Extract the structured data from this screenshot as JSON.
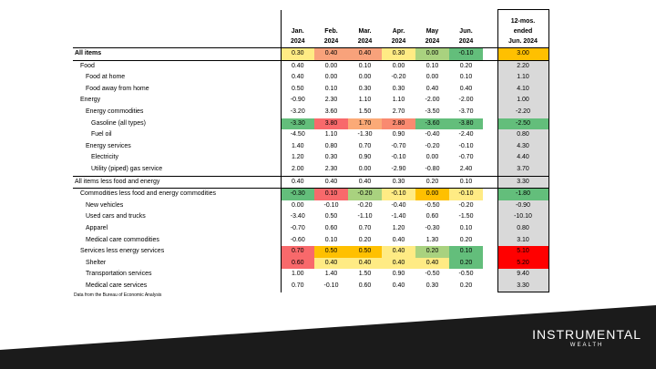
{
  "header": {
    "columns": [
      {
        "line1": "Jan.",
        "line2": "2024"
      },
      {
        "line1": "Feb.",
        "line2": "2024"
      },
      {
        "line1": "Mar.",
        "line2": "2024"
      },
      {
        "line1": "Apr.",
        "line2": "2024"
      },
      {
        "line1": "May",
        "line2": "2024"
      },
      {
        "line1": "Jun.",
        "line2": "2024"
      }
    ],
    "year_col": {
      "line1": "12-mos.",
      "line2": "ended",
      "line3": "Jun. 2024"
    }
  },
  "rows": [
    {
      "label": "All items",
      "indent": 0,
      "bold": true,
      "values": [
        "0.30",
        "0.40",
        "0.40",
        "0.30",
        "0.00",
        "-0.10"
      ],
      "colors": [
        "#ffeb84",
        "#f8a27b",
        "#f8a27b",
        "#ffeb84",
        "#a9d27f",
        "#63be7b"
      ],
      "year": "3.00",
      "year_color": "#ffc000"
    },
    {
      "label": "Food",
      "indent": 1,
      "values": [
        "0.40",
        "0.00",
        "0.10",
        "0.00",
        "0.10",
        "0.20"
      ],
      "year": "2.20"
    },
    {
      "label": "Food at home",
      "indent": 2,
      "values": [
        "0.40",
        "0.00",
        "0.00",
        "-0.20",
        "0.00",
        "0.10"
      ],
      "year": "1.10"
    },
    {
      "label": "Food away from home",
      "indent": 2,
      "values": [
        "0.50",
        "0.10",
        "0.30",
        "0.30",
        "0.40",
        "0.40"
      ],
      "year": "4.10"
    },
    {
      "label": "Energy",
      "indent": 1,
      "values": [
        "-0.90",
        "2.30",
        "1.10",
        "1.10",
        "-2.00",
        "-2.00"
      ],
      "year": "1.00"
    },
    {
      "label": "Energy commodities",
      "indent": 2,
      "values": [
        "-3.20",
        "3.60",
        "1.50",
        "2.70",
        "-3.50",
        "-3.70"
      ],
      "year": "-2.20"
    },
    {
      "label": "Gasoline (all types)",
      "indent": 3,
      "values": [
        "-3.30",
        "3.80",
        "1.70",
        "2.80",
        "-3.60",
        "-3.80"
      ],
      "colors": [
        "#63be7b",
        "#f8696b",
        "#fbaa77",
        "#f98a70",
        "#63be7b",
        "#63be7b"
      ],
      "year": "-2.50",
      "year_color": "#63be7b"
    },
    {
      "label": "Fuel oil",
      "indent": 3,
      "values": [
        "-4.50",
        "1.10",
        "-1.30",
        "0.90",
        "-0.40",
        "-2.40"
      ],
      "year": "0.80"
    },
    {
      "label": "Energy services",
      "indent": 2,
      "values": [
        "1.40",
        "0.80",
        "0.70",
        "-0.70",
        "-0.20",
        "-0.10"
      ],
      "year": "4.30"
    },
    {
      "label": "Electricity",
      "indent": 3,
      "values": [
        "1.20",
        "0.30",
        "0.90",
        "-0.10",
        "0.00",
        "-0.70"
      ],
      "year": "4.40"
    },
    {
      "label": "Utility (piped) gas service",
      "indent": 3,
      "values": [
        "2.00",
        "2.30",
        "0.00",
        "-2.90",
        "-0.80",
        "2.40"
      ],
      "year": "3.70"
    },
    {
      "label": "All items less food and energy",
      "indent": 0,
      "values": [
        "0.40",
        "0.40",
        "0.40",
        "0.30",
        "0.20",
        "0.10"
      ],
      "year": "3.30"
    },
    {
      "label": "Commodities less food and energy commodities",
      "indent": 1,
      "values": [
        "-0.30",
        "0.10",
        "-0.20",
        "-0.10",
        "0.00",
        "-0.10"
      ],
      "colors": [
        "#63be7b",
        "#f8696b",
        "#a9d27f",
        "#ffeb84",
        "#ffc000",
        "#ffeb84"
      ],
      "year": "-1.80",
      "year_color": "#63be7b"
    },
    {
      "label": "New vehicles",
      "indent": 2,
      "values": [
        "0.00",
        "-0.10",
        "-0.20",
        "-0.40",
        "-0.50",
        "-0.20"
      ],
      "year": "-0.90"
    },
    {
      "label": "Used cars and trucks",
      "indent": 2,
      "values": [
        "-3.40",
        "0.50",
        "-1.10",
        "-1.40",
        "0.60",
        "-1.50"
      ],
      "year": "-10.10"
    },
    {
      "label": "Apparel",
      "indent": 2,
      "values": [
        "-0.70",
        "0.60",
        "0.70",
        "1.20",
        "-0.30",
        "0.10"
      ],
      "year": "0.80"
    },
    {
      "label": "Medical care commodities",
      "indent": 2,
      "values": [
        "-0.60",
        "0.10",
        "0.20",
        "0.40",
        "1.30",
        "0.20"
      ],
      "year": "3.10"
    },
    {
      "label": "Services less energy services",
      "indent": 1,
      "values": [
        "0.70",
        "0.50",
        "0.50",
        "0.40",
        "0.20",
        "0.10"
      ],
      "colors": [
        "#f8696b",
        "#ffc000",
        "#ffc000",
        "#ffeb84",
        "#a9d27f",
        "#63be7b"
      ],
      "year": "5.10",
      "year_color": "#ff0000"
    },
    {
      "label": "Shelter",
      "indent": 2,
      "values": [
        "0.60",
        "0.40",
        "0.40",
        "0.40",
        "0.40",
        "0.20"
      ],
      "colors": [
        "#f8696b",
        "#ffeb84",
        "#ffeb84",
        "#ffeb84",
        "#ffeb84",
        "#63be7b"
      ],
      "year": "5.20",
      "year_color": "#ff0000"
    },
    {
      "label": "Transportation services",
      "indent": 2,
      "values": [
        "1.00",
        "1.40",
        "1.50",
        "0.90",
        "-0.50",
        "-0.50"
      ],
      "year": "9.40"
    },
    {
      "label": "Medical care services",
      "indent": 2,
      "values": [
        "0.70",
        "-0.10",
        "0.60",
        "0.40",
        "0.30",
        "0.20"
      ],
      "year": "3.30"
    }
  ],
  "footnote": "Data from the Bureau of Economic Analysis",
  "logo": {
    "main": "INSTRUMENTAL",
    "sub": "WEALTH"
  },
  "colors": {
    "band": "#1b1b1b"
  }
}
